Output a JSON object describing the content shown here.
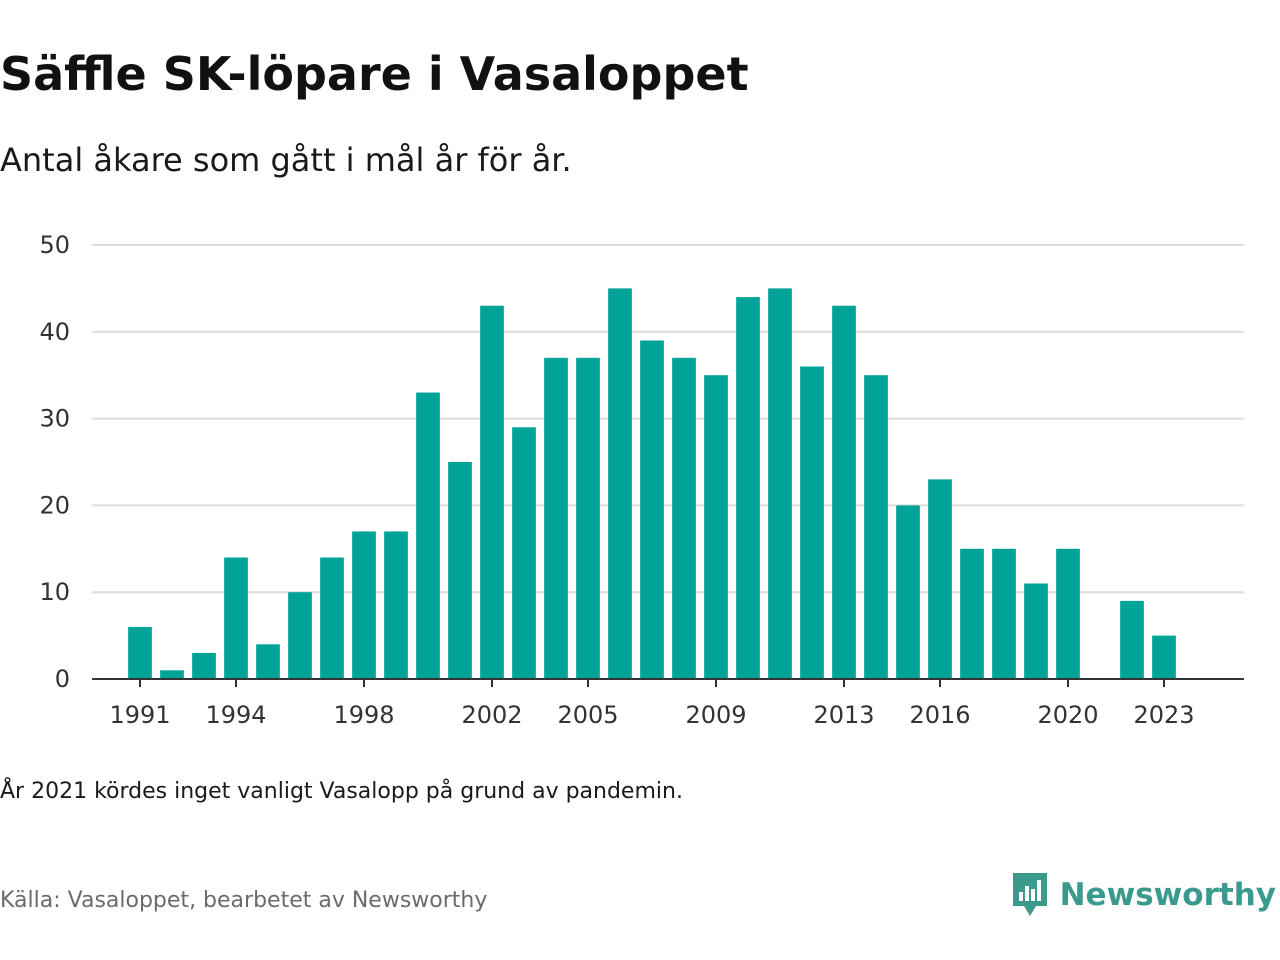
{
  "header": {
    "title": "Säffle SK-löpare i Vasaloppet",
    "subtitle": "Antal åkare som gått i mål år för år."
  },
  "footer": {
    "note": "År 2021 kördes inget vanligt Vasalopp på grund av pandemin.",
    "source": "Källa: Vasaloppet, bearbetet av Newsworthy",
    "brand": "Newsworthy",
    "brand_color": "#3a9a8e"
  },
  "colors": {
    "bar": "#00a398",
    "grid": "#dddddd",
    "axis": "#333333"
  },
  "chart_data": {
    "type": "bar",
    "title": "Säffle SK-löpare i Vasaloppet",
    "subtitle": "Antal åkare som gått i mål år för år.",
    "xlabel": "",
    "ylabel": "",
    "ylim": [
      0,
      50
    ],
    "y_ticks": [
      0,
      10,
      20,
      30,
      40,
      50
    ],
    "x_tick_labels": [
      "1991",
      "1994",
      "1998",
      "2002",
      "2005",
      "2009",
      "2013",
      "2016",
      "2020",
      "2023"
    ],
    "grid": true,
    "categories": [
      1990,
      1991,
      1992,
      1993,
      1994,
      1995,
      1996,
      1997,
      1998,
      1999,
      2000,
      2001,
      2002,
      2003,
      2004,
      2005,
      2006,
      2007,
      2008,
      2009,
      2010,
      2011,
      2012,
      2013,
      2014,
      2015,
      2016,
      2017,
      2018,
      2019,
      2020,
      2021,
      2022,
      2023,
      2024
    ],
    "values": [
      null,
      6,
      1,
      3,
      14,
      4,
      10,
      14,
      17,
      17,
      33,
      25,
      43,
      29,
      37,
      37,
      45,
      39,
      37,
      35,
      44,
      45,
      36,
      43,
      35,
      20,
      23,
      15,
      15,
      11,
      15,
      null,
      9,
      5,
      null
    ]
  }
}
